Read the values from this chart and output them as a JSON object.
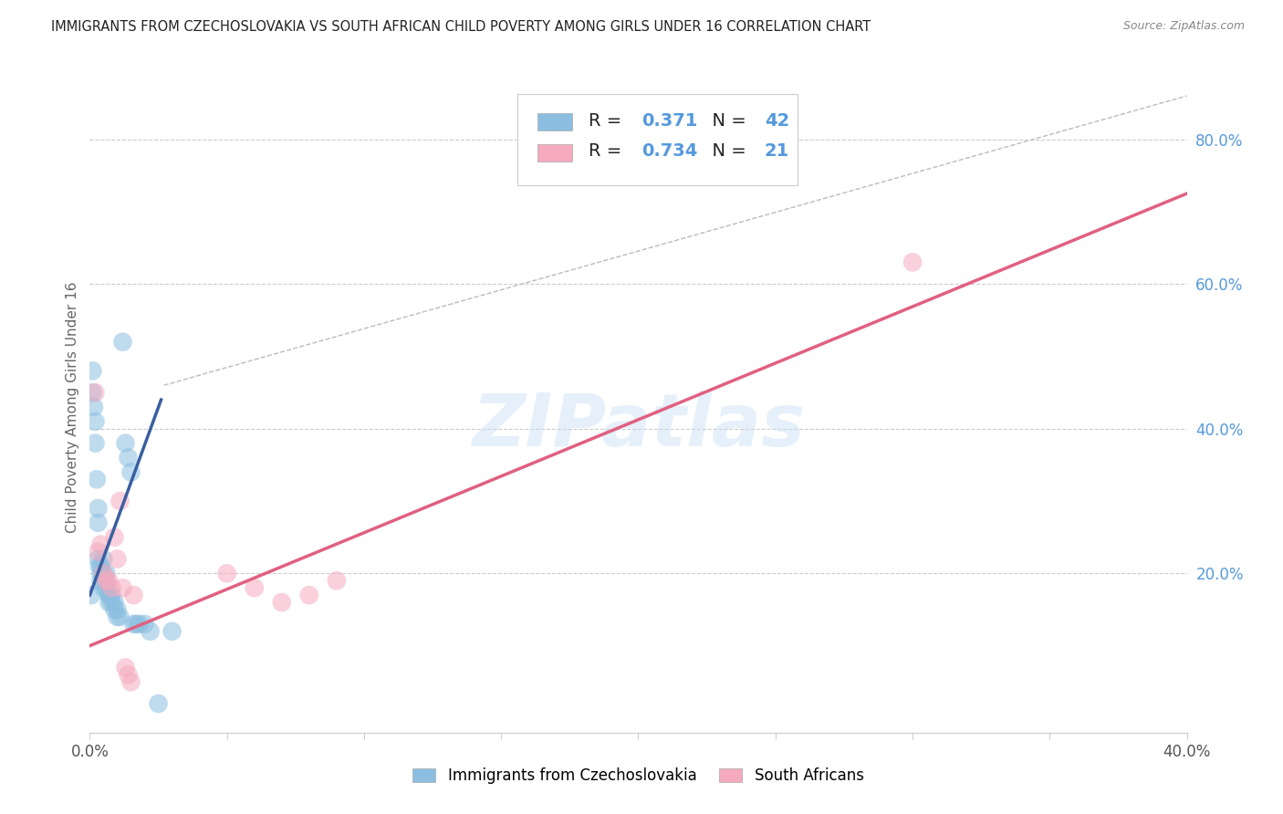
{
  "title": "IMMIGRANTS FROM CZECHOSLOVAKIA VS SOUTH AFRICAN CHILD POVERTY AMONG GIRLS UNDER 16 CORRELATION CHART",
  "source": "Source: ZipAtlas.com",
  "ylabel": "Child Poverty Among Girls Under 16",
  "watermark": "ZIPatlas",
  "xlim": [
    0.0,
    0.4
  ],
  "ylim": [
    -0.02,
    0.88
  ],
  "xticks": [
    0.0,
    0.05,
    0.1,
    0.15,
    0.2,
    0.25,
    0.3,
    0.35,
    0.4
  ],
  "xticklabels": [
    "0.0%",
    "",
    "",
    "",
    "",
    "",
    "",
    "",
    "40.0%"
  ],
  "yticks_right": [
    0.2,
    0.4,
    0.6,
    0.8
  ],
  "ytick_right_labels": [
    "20.0%",
    "40.0%",
    "60.0%",
    "80.0%"
  ],
  "legend_R1": "0.371",
  "legend_N1": "42",
  "legend_R2": "0.734",
  "legend_N2": "21",
  "blue_color": "#8bbee0",
  "pink_color": "#f5aabe",
  "blue_line_color": "#3a5fa0",
  "pink_line_color": "#e06080",
  "grid_color": "#cccccc",
  "title_color": "#222222",
  "source_color": "#888888",
  "right_axis_color": "#5599dd",
  "blue_scatter_x": [
    0.0005,
    0.001,
    0.001,
    0.0015,
    0.002,
    0.002,
    0.0025,
    0.003,
    0.003,
    0.003,
    0.0035,
    0.004,
    0.004,
    0.004,
    0.005,
    0.005,
    0.005,
    0.005,
    0.006,
    0.006,
    0.006,
    0.007,
    0.007,
    0.007,
    0.008,
    0.008,
    0.009,
    0.009,
    0.01,
    0.01,
    0.011,
    0.012,
    0.013,
    0.014,
    0.015,
    0.016,
    0.017,
    0.018,
    0.02,
    0.022,
    0.025,
    0.03
  ],
  "blue_scatter_y": [
    0.17,
    0.48,
    0.45,
    0.43,
    0.41,
    0.38,
    0.33,
    0.29,
    0.27,
    0.22,
    0.21,
    0.21,
    0.2,
    0.19,
    0.22,
    0.2,
    0.19,
    0.18,
    0.2,
    0.19,
    0.18,
    0.17,
    0.17,
    0.16,
    0.17,
    0.16,
    0.16,
    0.15,
    0.15,
    0.14,
    0.14,
    0.52,
    0.38,
    0.36,
    0.34,
    0.13,
    0.13,
    0.13,
    0.13,
    0.12,
    0.02,
    0.12
  ],
  "pink_scatter_x": [
    0.002,
    0.003,
    0.004,
    0.005,
    0.006,
    0.007,
    0.008,
    0.009,
    0.01,
    0.011,
    0.012,
    0.013,
    0.014,
    0.015,
    0.016,
    0.05,
    0.06,
    0.07,
    0.08,
    0.09,
    0.3
  ],
  "pink_scatter_y": [
    0.45,
    0.23,
    0.24,
    0.2,
    0.19,
    0.19,
    0.18,
    0.25,
    0.22,
    0.3,
    0.18,
    0.07,
    0.06,
    0.05,
    0.17,
    0.2,
    0.18,
    0.16,
    0.17,
    0.19,
    0.63
  ],
  "blue_trend_x": [
    0.0,
    0.026
  ],
  "blue_trend_y": [
    0.17,
    0.44
  ],
  "pink_trend_x": [
    0.0,
    0.4
  ],
  "pink_trend_y": [
    0.1,
    0.725
  ],
  "ref_line_x": [
    0.027,
    0.4
  ],
  "ref_line_y": [
    0.46,
    0.86
  ]
}
